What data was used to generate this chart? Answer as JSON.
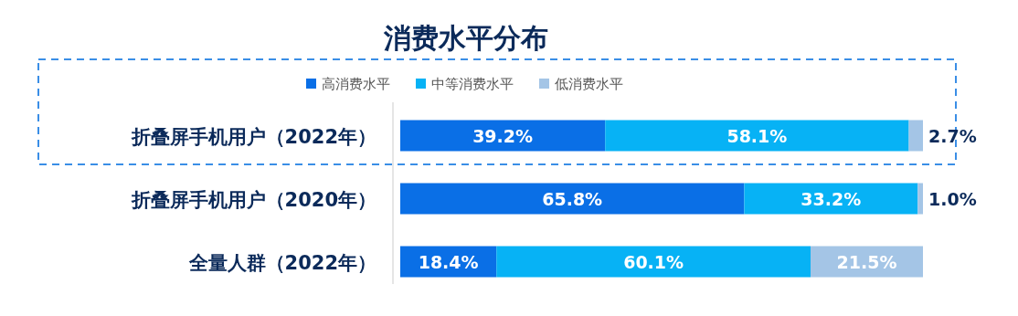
{
  "chart_data": {
    "type": "bar",
    "orientation": "horizontal",
    "stacked": true,
    "title": "消费水平分布",
    "categories": [
      "折叠屏手机用户（2022年）",
      "折叠屏手机用户（2020年）",
      "全量人群（2022年）"
    ],
    "series": [
      {
        "name": "高消费水平",
        "color": "#0a6fe6",
        "values": [
          39.2,
          65.8,
          18.4
        ],
        "value_labels": [
          "39.2%",
          "65.8%",
          "18.4%"
        ]
      },
      {
        "name": "中等消费水平",
        "color": "#07b2f5",
        "values": [
          58.1,
          33.2,
          60.1
        ],
        "value_labels": [
          "58.1%",
          "33.2%",
          "60.1%"
        ]
      },
      {
        "name": "低消费水平",
        "color": "#a4c5e6",
        "values": [
          2.7,
          1.0,
          21.5
        ],
        "value_labels": [
          "2.7%",
          "1.0%",
          "21.5%"
        ]
      }
    ],
    "legend": "top"
  }
}
